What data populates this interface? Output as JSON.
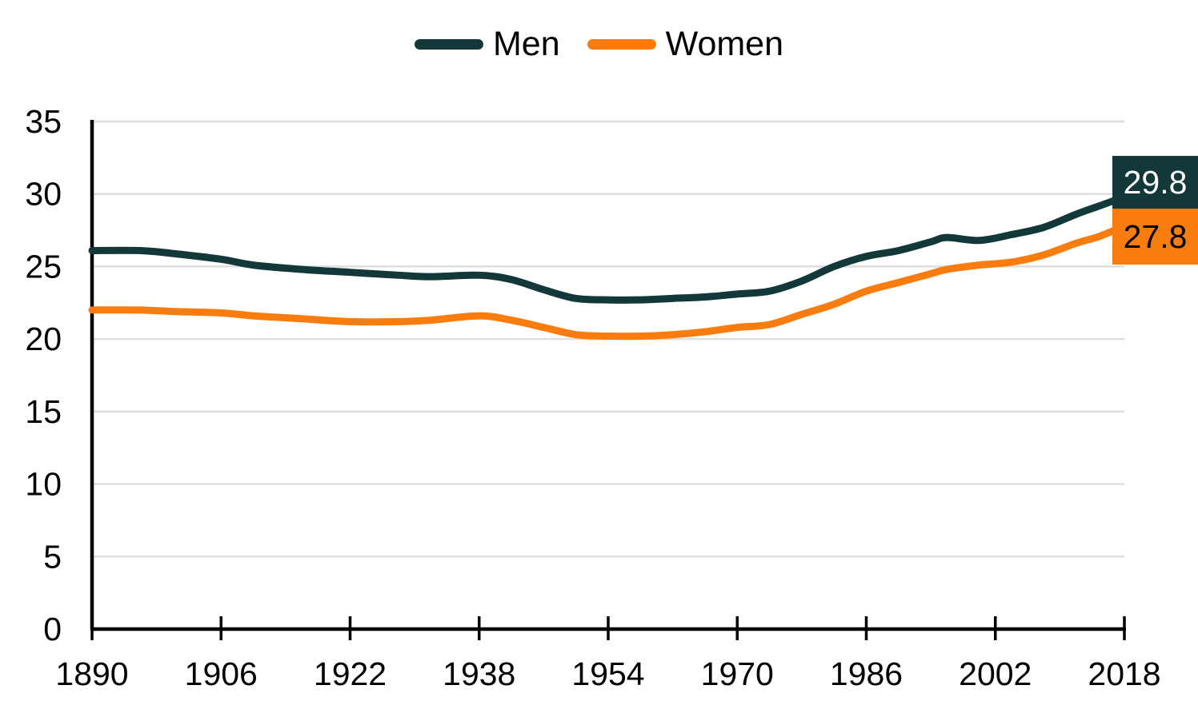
{
  "chart_data": {
    "type": "line",
    "title": "",
    "xlabel": "",
    "ylabel": "",
    "xlim": [
      1890,
      2018
    ],
    "ylim": [
      0,
      35
    ],
    "x_ticks": [
      1890,
      1906,
      1922,
      1938,
      1954,
      1970,
      1986,
      2002,
      2018
    ],
    "y_ticks": [
      0,
      5,
      10,
      15,
      20,
      25,
      30,
      35
    ],
    "grid": "horizontal",
    "legend_position": "top-center",
    "x": [
      1890,
      1896,
      1900,
      1906,
      1910,
      1916,
      1922,
      1928,
      1932,
      1938,
      1942,
      1946,
      1950,
      1954,
      1958,
      1962,
      1966,
      1970,
      1974,
      1978,
      1982,
      1986,
      1990,
      1994,
      1996,
      2000,
      2004,
      2008,
      2012,
      2015,
      2018
    ],
    "series": [
      {
        "name": "Men",
        "color": "#123839",
        "values": [
          26.1,
          26.1,
          25.9,
          25.5,
          25.1,
          24.8,
          24.6,
          24.4,
          24.3,
          24.4,
          24.1,
          23.4,
          22.8,
          22.7,
          22.7,
          22.8,
          22.9,
          23.1,
          23.3,
          24.0,
          25.0,
          25.7,
          26.1,
          26.7,
          27.0,
          26.8,
          27.2,
          27.7,
          28.6,
          29.2,
          29.8
        ],
        "end_label": {
          "text": "29.8",
          "value": 29.8,
          "bg": "#123839",
          "fg": "#FFFFFF"
        }
      },
      {
        "name": "Women",
        "color": "#F97C0E",
        "values": [
          22.0,
          22.0,
          21.9,
          21.8,
          21.6,
          21.4,
          21.2,
          21.2,
          21.3,
          21.6,
          21.3,
          20.8,
          20.3,
          20.2,
          20.2,
          20.3,
          20.5,
          20.8,
          21.0,
          21.7,
          22.4,
          23.3,
          23.9,
          24.5,
          24.8,
          25.1,
          25.3,
          25.8,
          26.6,
          27.1,
          27.8
        ],
        "end_label": {
          "text": "27.8",
          "value": 27.8,
          "bg": "#F97C0E",
          "fg": "#000000"
        }
      }
    ]
  },
  "styles": {
    "grid_color": "#DEDEDE",
    "axis_color": "#000000",
    "text_color": "#000000",
    "background": "#FFFFFF"
  }
}
